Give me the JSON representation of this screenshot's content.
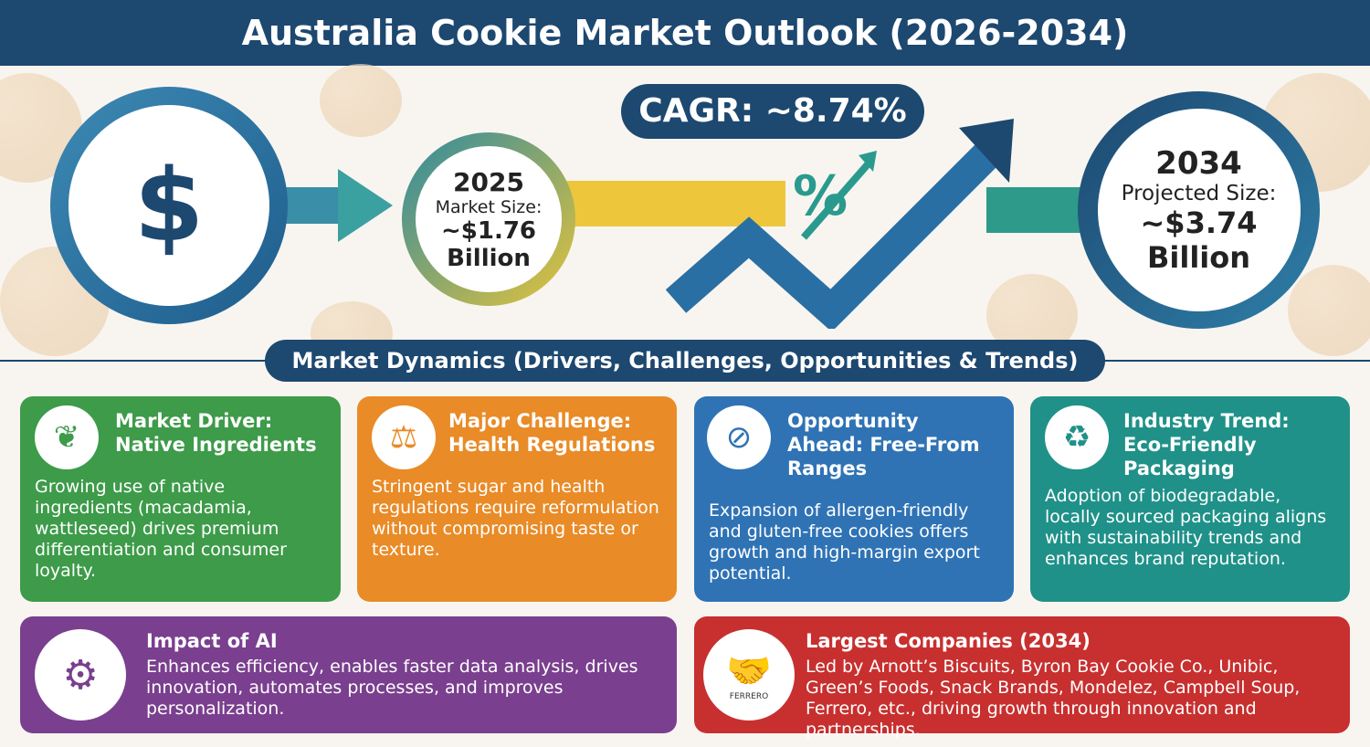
{
  "title": "Australia Cookie Market Outlook (2026-2034)",
  "cagr": "CAGR: ~8.74%",
  "percent_symbol": "%",
  "market_2025": {
    "year": "2025",
    "label": "Market Size:",
    "value": "~$1.76",
    "unit": "Billion"
  },
  "market_2034": {
    "year": "2034",
    "label": "Projected Size:",
    "value": "~$3.74",
    "unit": "Billion"
  },
  "dynamics_title": "Market Dynamics (Drivers, Challenges, Opportunities & Trends)",
  "cards": [
    {
      "title": "Market Driver: Native Ingredients",
      "text": "Growing use of native ingredients (macadamia, wattleseed) drives premium differentiation and consumer loyalty.",
      "color": "#3d9b49",
      "icon": "macadamia-leaf-icon"
    },
    {
      "title": "Major Challenge: Health Regulations",
      "text": "Stringent sugar and health regulations require reformulation without compromising taste or texture.",
      "color": "#e98b27",
      "icon": "sugar-cubes-scale-icon"
    },
    {
      "title": "Opportunity Ahead: Free-From Ranges",
      "text": "Expansion of allergen-friendly and gluten-free cookies offers growth and high-margin export potential.",
      "color": "#2f73b5",
      "icon": "gluten-free-icon"
    },
    {
      "title": "Industry Trend: Eco-Friendly Packaging",
      "text": "Adoption of biodegradable, locally sourced packaging aligns with sustainability trends and enhances brand reputation.",
      "color": "#1f9189",
      "icon": "eco-box-icon"
    },
    {
      "title": "Impact of AI",
      "text": "Enhances efficiency, enables faster data analysis, drives innovation, automates processes, and improves personalization.",
      "color": "#7a3f8e",
      "icon": "ai-brain-icon"
    },
    {
      "title": "Largest Companies (2034)",
      "text": "Led by Arnott’s Biscuits, Byron Bay Cookie Co., Unibic, Green’s Foods, Snack Brands, Mondelez, Campbell Soup, Ferrero, etc., driving growth through innovation and partnerships.",
      "color": "#c7302f",
      "icon": "handshake-icon"
    }
  ],
  "logos": [
    "ARNOTT'S",
    "Mondelez",
    "Green's",
    "FERRERO"
  ]
}
